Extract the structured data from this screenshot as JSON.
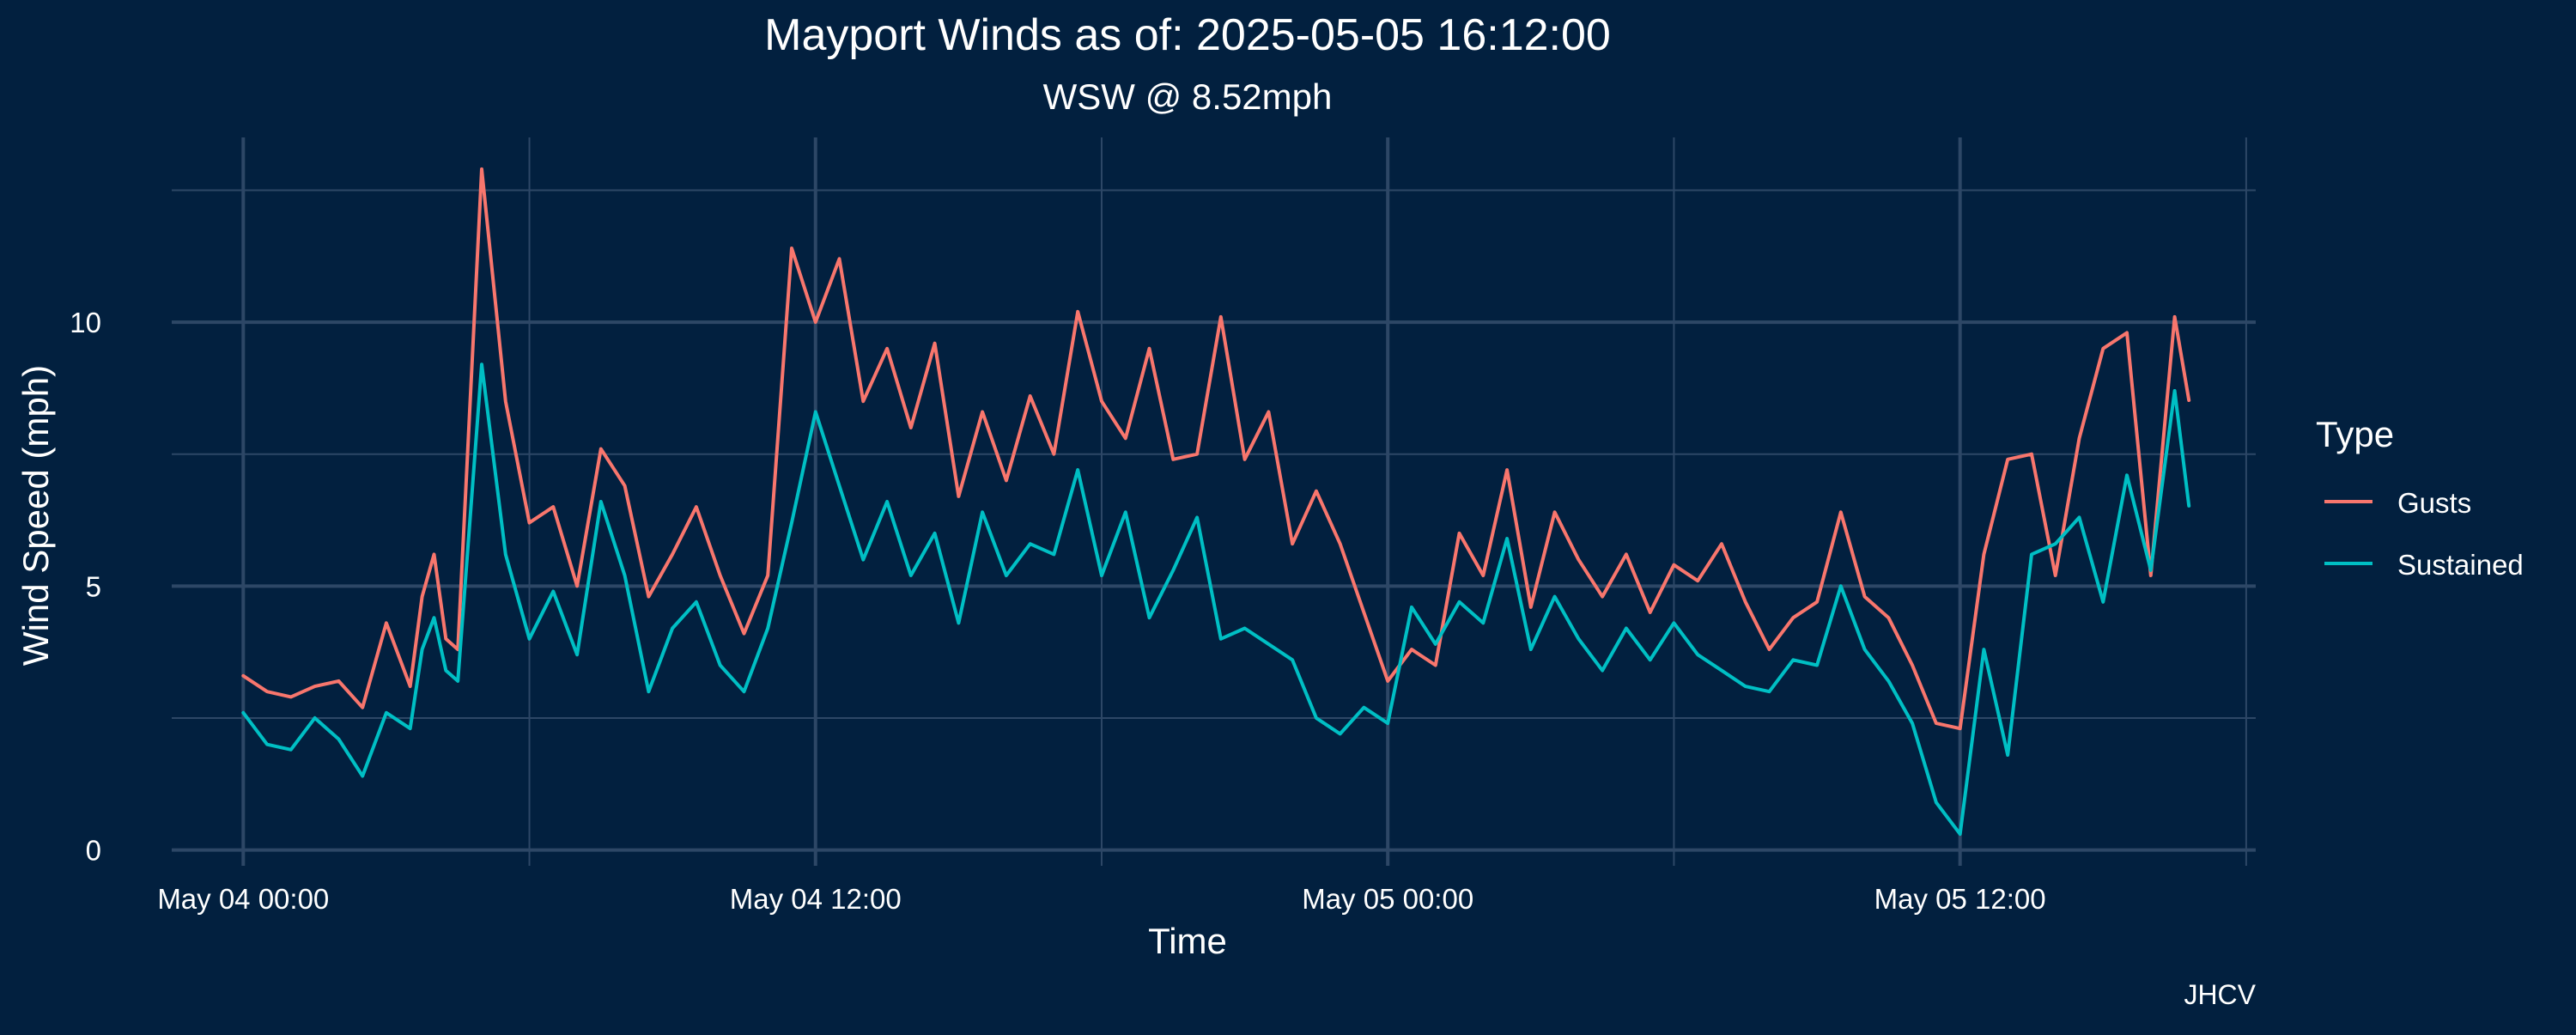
{
  "chart_data": {
    "type": "line",
    "title": "Mayport Winds as of: 2025-05-05 16:12:00",
    "subtitle": "WSW @ 8.52mph",
    "xlabel": "Time",
    "ylabel": "Wind Speed (mph)",
    "caption": "JHCV",
    "x_ticks": [
      "May 04 00:00",
      "May 04 12:00",
      "May 05 00:00",
      "May 05 12:00"
    ],
    "x_tick_hours": [
      0,
      12,
      24,
      36
    ],
    "xlim_hours": [
      -1.5,
      42.2
    ],
    "y_ticks": [
      0,
      5,
      10
    ],
    "ylim": [
      -0.3,
      13.5
    ],
    "grid": true,
    "legend": {
      "title": "Type",
      "position": "right"
    },
    "colors": {
      "background": "#02203f",
      "grid": "#2d4766",
      "Gusts": "#f8766d",
      "Sustained": "#00bfc4"
    },
    "series": [
      {
        "name": "Gusts",
        "x_hours": [
          0.0,
          0.5,
          1.0,
          1.5,
          2.0,
          2.5,
          3.0,
          3.5,
          3.75,
          4.0,
          4.25,
          4.5,
          5.0,
          5.5,
          6.0,
          6.5,
          7.0,
          7.5,
          8.0,
          8.5,
          9.0,
          9.5,
          10.0,
          10.5,
          11.0,
          11.5,
          12.0,
          12.5,
          13.0,
          13.5,
          14.0,
          14.5,
          15.0,
          15.5,
          16.0,
          16.5,
          17.0,
          17.5,
          18.0,
          18.5,
          19.0,
          19.5,
          20.0,
          20.5,
          21.0,
          21.5,
          22.0,
          22.5,
          23.0,
          23.5,
          24.0,
          24.5,
          25.0,
          25.5,
          26.0,
          26.5,
          27.0,
          27.5,
          28.0,
          28.5,
          29.0,
          29.5,
          30.0,
          30.5,
          31.0,
          31.5,
          32.0,
          32.5,
          33.0,
          33.5,
          34.0,
          34.5,
          35.0,
          35.5,
          36.0,
          36.5,
          37.0,
          37.5,
          38.0,
          38.5,
          39.0,
          39.5,
          40.0,
          40.5,
          40.8
        ],
        "values": [
          3.3,
          3.0,
          2.9,
          3.1,
          3.2,
          2.7,
          4.3,
          3.1,
          4.8,
          5.6,
          4.0,
          3.8,
          12.9,
          8.5,
          6.2,
          6.5,
          5.0,
          7.6,
          6.9,
          4.8,
          5.6,
          6.5,
          5.2,
          4.1,
          5.2,
          11.4,
          10.0,
          11.2,
          8.5,
          9.5,
          8.0,
          9.6,
          6.7,
          8.3,
          7.0,
          8.6,
          7.5,
          10.2,
          8.5,
          7.8,
          9.5,
          7.4,
          7.5,
          10.1,
          7.4,
          8.3,
          5.8,
          6.8,
          5.8,
          4.5,
          3.2,
          3.8,
          3.5,
          6.0,
          5.2,
          7.2,
          4.6,
          6.4,
          5.5,
          4.8,
          5.6,
          4.5,
          5.4,
          5.1,
          5.8,
          4.7,
          3.8,
          4.4,
          4.7,
          6.4,
          4.8,
          4.4,
          3.5,
          2.4,
          2.3,
          5.6,
          7.4,
          7.5,
          5.2,
          7.8,
          9.5,
          9.8,
          5.2,
          10.1,
          8.52
        ]
      },
      {
        "name": "Sustained",
        "x_hours": [
          0.0,
          0.5,
          1.0,
          1.5,
          2.0,
          2.5,
          3.0,
          3.5,
          3.75,
          4.0,
          4.25,
          4.5,
          5.0,
          5.5,
          6.0,
          6.5,
          7.0,
          7.5,
          8.0,
          8.5,
          9.0,
          9.5,
          10.0,
          10.5,
          11.0,
          11.5,
          12.0,
          12.5,
          13.0,
          13.5,
          14.0,
          14.5,
          15.0,
          15.5,
          16.0,
          16.5,
          17.0,
          17.5,
          18.0,
          18.5,
          19.0,
          19.5,
          20.0,
          20.5,
          21.0,
          21.5,
          22.0,
          22.5,
          23.0,
          23.5,
          24.0,
          24.5,
          25.0,
          25.5,
          26.0,
          26.5,
          27.0,
          27.5,
          28.0,
          28.5,
          29.0,
          29.5,
          30.0,
          30.5,
          31.0,
          31.5,
          32.0,
          32.5,
          33.0,
          33.5,
          34.0,
          34.5,
          35.0,
          35.5,
          36.0,
          36.5,
          37.0,
          37.5,
          38.0,
          38.5,
          39.0,
          39.5,
          40.0,
          40.5,
          40.8
        ],
        "values": [
          2.6,
          2.0,
          1.9,
          2.5,
          2.1,
          1.4,
          2.6,
          2.3,
          3.8,
          4.4,
          3.4,
          3.2,
          9.2,
          5.6,
          4.0,
          4.9,
          3.7,
          6.6,
          5.2,
          3.0,
          4.2,
          4.7,
          3.5,
          3.0,
          4.2,
          6.2,
          8.3,
          6.9,
          5.5,
          6.6,
          5.2,
          6.0,
          4.3,
          6.4,
          5.2,
          5.8,
          5.6,
          7.2,
          5.2,
          6.4,
          4.4,
          5.3,
          6.3,
          4.0,
          4.2,
          3.9,
          3.6,
          2.5,
          2.2,
          2.7,
          2.4,
          4.6,
          3.9,
          4.7,
          4.3,
          5.9,
          3.8,
          4.8,
          4.0,
          3.4,
          4.2,
          3.6,
          4.3,
          3.7,
          3.4,
          3.1,
          3.0,
          3.6,
          3.5,
          5.0,
          3.8,
          3.2,
          2.4,
          0.9,
          0.3,
          3.8,
          1.8,
          5.6,
          5.8,
          6.3,
          4.7,
          7.1,
          5.3,
          8.7,
          6.52
        ]
      }
    ]
  }
}
